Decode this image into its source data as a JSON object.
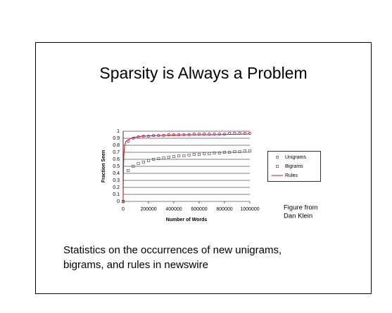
{
  "slide": {
    "title": "Sparsity is Always a Problem",
    "caption": [
      "Statistics on the occurrences of new unigrams,",
      "bigrams, and rules in newswire"
    ],
    "credit": [
      "Figure from",
      "Dan Klein"
    ]
  },
  "chart_data": {
    "type": "line",
    "xlabel": "Number of Words",
    "ylabel": "Fraction Seen",
    "x": [
      0,
      40000,
      80000,
      120000,
      160000,
      200000,
      240000,
      280000,
      320000,
      360000,
      400000,
      440000,
      480000,
      520000,
      560000,
      600000,
      640000,
      680000,
      720000,
      760000,
      800000,
      840000,
      880000,
      920000,
      960000,
      1000000
    ],
    "series": [
      {
        "name": "Unigrams",
        "color": "#8a2a8a",
        "marker": "circle",
        "values": [
          0,
          0.86,
          0.9,
          0.92,
          0.93,
          0.93,
          0.94,
          0.94,
          0.94,
          0.95,
          0.95,
          0.95,
          0.95,
          0.95,
          0.96,
          0.96,
          0.96,
          0.96,
          0.96,
          0.96,
          0.96,
          0.97,
          0.97,
          0.97,
          0.97,
          0.97
        ]
      },
      {
        "name": "Bigrams",
        "color": "#555555",
        "marker": "square",
        "values": [
          0,
          0.44,
          0.5,
          0.54,
          0.56,
          0.58,
          0.6,
          0.61,
          0.62,
          0.63,
          0.64,
          0.65,
          0.65,
          0.66,
          0.67,
          0.67,
          0.68,
          0.68,
          0.69,
          0.69,
          0.7,
          0.7,
          0.71,
          0.71,
          0.72,
          0.72
        ]
      },
      {
        "name": "Rules",
        "color": "#e01010",
        "marker": null,
        "x": [
          0,
          2000,
          5000,
          10000,
          20000,
          40000,
          80000,
          150000,
          300000,
          500000,
          700000,
          1000000
        ],
        "values": [
          0,
          0.4,
          0.65,
          0.78,
          0.85,
          0.88,
          0.91,
          0.93,
          0.94,
          0.95,
          0.95,
          0.96
        ]
      }
    ],
    "xlim": [
      0,
      1000000
    ],
    "xticks": [
      0,
      200000,
      400000,
      600000,
      800000,
      1000000
    ],
    "ylim": [
      0,
      1
    ],
    "yticks": [
      0,
      0.1,
      0.2,
      0.3,
      0.4,
      0.5,
      0.6,
      0.7,
      0.8,
      0.9,
      1
    ],
    "grid": true
  }
}
